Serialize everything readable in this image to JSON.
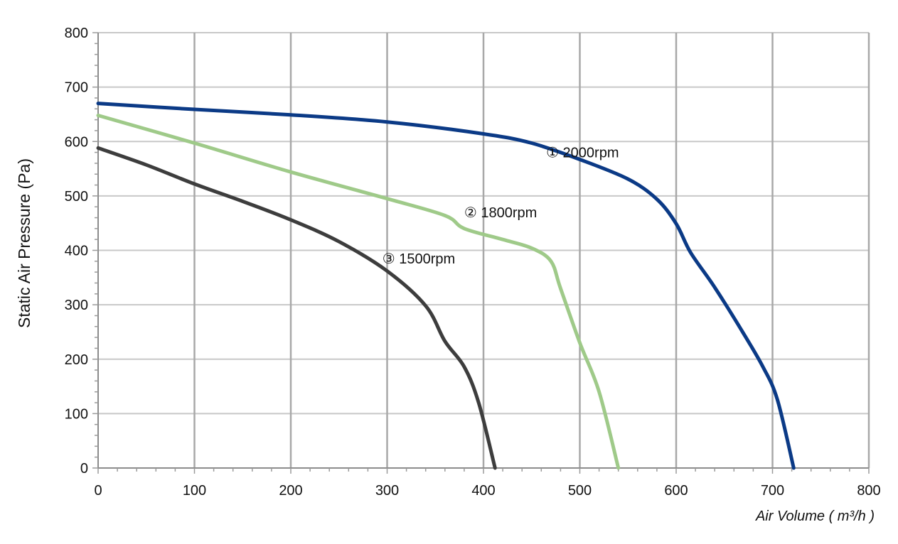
{
  "chart_data": {
    "type": "line",
    "xlabel": "Air Volume ( m³/h )",
    "ylabel": "Static Air Pressure  (Pa)",
    "xlim": [
      0,
      800
    ],
    "ylim": [
      0,
      800
    ],
    "x_ticks": [
      "0",
      "100",
      "200",
      "300",
      "400",
      "500",
      "600",
      "700",
      "800"
    ],
    "y_ticks": [
      "0",
      "100",
      "200",
      "300",
      "400",
      "500",
      "600",
      "700",
      "800"
    ],
    "grid": true,
    "series": [
      {
        "name": "① 2000rpm",
        "color": "#0b3a86",
        "points": [
          [
            0,
            670
          ],
          [
            100,
            659
          ],
          [
            200,
            649
          ],
          [
            300,
            636
          ],
          [
            400,
            614
          ],
          [
            450,
            597
          ],
          [
            500,
            567
          ],
          [
            550,
            531
          ],
          [
            580,
            494
          ],
          [
            600,
            449
          ],
          [
            615,
            396
          ],
          [
            640,
            332
          ],
          [
            670,
            247
          ],
          [
            690,
            186
          ],
          [
            705,
            126
          ],
          [
            722,
            0
          ]
        ]
      },
      {
        "name": "② 1800rpm",
        "color": "#9fca89",
        "points": [
          [
            0,
            648
          ],
          [
            100,
            597
          ],
          [
            200,
            544
          ],
          [
            300,
            495
          ],
          [
            360,
            464
          ],
          [
            380,
            440
          ],
          [
            420,
            420
          ],
          [
            450,
            404
          ],
          [
            470,
            380
          ],
          [
            480,
            330
          ],
          [
            500,
            230
          ],
          [
            520,
            140
          ],
          [
            540,
            0
          ]
        ]
      },
      {
        "name": "③ 1500rpm",
        "color": "#3d3d3d",
        "points": [
          [
            0,
            588
          ],
          [
            50,
            557
          ],
          [
            100,
            522
          ],
          [
            150,
            490
          ],
          [
            200,
            456
          ],
          [
            250,
            416
          ],
          [
            300,
            362
          ],
          [
            340,
            298
          ],
          [
            360,
            233
          ],
          [
            380,
            186
          ],
          [
            395,
            120
          ],
          [
            412,
            0
          ]
        ]
      }
    ],
    "annotations": [
      {
        "text": "① 2000rpm",
        "x": 465,
        "y": 580
      },
      {
        "text": "② 1800rpm",
        "x": 380,
        "y": 470
      },
      {
        "text": "③ 1500rpm",
        "x": 295,
        "y": 385
      }
    ]
  }
}
